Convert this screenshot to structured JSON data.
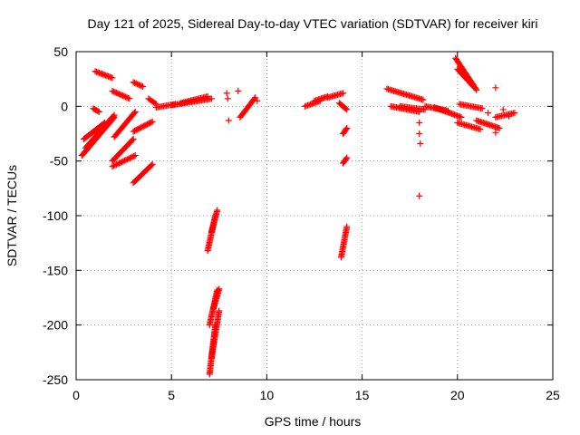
{
  "chart_data": {
    "type": "scatter",
    "title": "Day 121 of 2025, Sidereal Day-to-day VTEC variation (SDTVAR) for receiver kiri",
    "xlabel": "GPS time / hours",
    "ylabel": "SDTVAR / TECUs",
    "xlim": [
      0,
      25
    ],
    "ylim": [
      -250,
      50
    ],
    "xticks": [
      0,
      5,
      10,
      15,
      20,
      25
    ],
    "yticks": [
      -250,
      -200,
      -150,
      -100,
      -50,
      0,
      50
    ],
    "xtick_labels": [
      "0",
      "5",
      "10",
      "15",
      "20",
      "25"
    ],
    "ytick_labels": [
      "-250",
      "-200",
      "-150",
      "-100",
      "-50",
      "0",
      "50"
    ],
    "grid": true,
    "marker": "+",
    "color": "#ff0000",
    "tracks": [
      {
        "x": [
          0.3,
          2.0
        ],
        "y": [
          -45,
          -10
        ]
      },
      {
        "x": [
          0.5,
          2.0
        ],
        "y": [
          -38,
          -8
        ]
      },
      {
        "x": [
          0.4,
          1.5
        ],
        "y": [
          -30,
          -15
        ]
      },
      {
        "x": [
          0.9,
          1.2
        ],
        "y": [
          -2,
          -5
        ]
      },
      {
        "x": [
          1.0,
          1.9
        ],
        "y": [
          32,
          26
        ]
      },
      {
        "x": [
          1.9,
          2.8
        ],
        "y": [
          14,
          7
        ]
      },
      {
        "x": [
          2.0,
          3.1
        ],
        "y": [
          -28,
          -5
        ]
      },
      {
        "x": [
          1.9,
          3.1
        ],
        "y": [
          -55,
          -45
        ]
      },
      {
        "x": [
          1.9,
          3.0
        ],
        "y": [
          -50,
          -30
        ]
      },
      {
        "x": [
          3.0,
          3.5
        ],
        "y": [
          22,
          18
        ]
      },
      {
        "x": [
          3.0,
          4.0
        ],
        "y": [
          -23,
          -14
        ]
      },
      {
        "x": [
          3.0,
          4.0
        ],
        "y": [
          -70,
          -53
        ]
      },
      {
        "x": [
          3.8,
          4.2
        ],
        "y": [
          7,
          2
        ]
      },
      {
        "x": [
          4.2,
          5.2
        ],
        "y": [
          -1,
          2
        ]
      },
      {
        "x": [
          5.0,
          7.1
        ],
        "y": [
          1,
          7
        ]
      },
      {
        "x": [
          5.5,
          6.9
        ],
        "y": [
          3,
          9
        ]
      },
      {
        "x": [
          6.9,
          7.3
        ],
        "y": [
          -132,
          -100
        ]
      },
      {
        "x": [
          7.1,
          7.4
        ],
        "y": [
          -115,
          -95
        ]
      },
      {
        "x": [
          7.0,
          7.3
        ],
        "y": [
          -245,
          -200
        ]
      },
      {
        "x": [
          7.1,
          7.5
        ],
        "y": [
          -230,
          -187
        ]
      },
      {
        "x": [
          7.0,
          7.4
        ],
        "y": [
          -200,
          -168
        ]
      },
      {
        "x": [
          7.2,
          7.5
        ],
        "y": [
          -185,
          -167
        ]
      },
      {
        "x": [
          8.6,
          9.4
        ],
        "y": [
          -10,
          8
        ]
      },
      {
        "x": [
          12.0,
          12.8
        ],
        "y": [
          0,
          5
        ]
      },
      {
        "x": [
          12.5,
          13.2
        ],
        "y": [
          5,
          9
        ]
      },
      {
        "x": [
          13.2,
          14.0
        ],
        "y": [
          8,
          12
        ]
      },
      {
        "x": [
          13.8,
          14.2
        ],
        "y": [
          3,
          -3
        ]
      },
      {
        "x": [
          14.0,
          14.2
        ],
        "y": [
          -25,
          -20
        ]
      },
      {
        "x": [
          14.0,
          14.2
        ],
        "y": [
          -52,
          -47
        ]
      },
      {
        "x": [
          13.9,
          14.2
        ],
        "y": [
          -138,
          -110
        ]
      },
      {
        "x": [
          16.3,
          18.2
        ],
        "y": [
          16,
          6
        ]
      },
      {
        "x": [
          16.5,
          18.0
        ],
        "y": [
          0,
          -5
        ]
      },
      {
        "x": [
          17.0,
          18.3
        ],
        "y": [
          0,
          -3
        ]
      },
      {
        "x": [
          18.3,
          19.5
        ],
        "y": [
          0,
          -4
        ]
      },
      {
        "x": [
          18.8,
          20.2
        ],
        "y": [
          -1,
          -10
        ]
      },
      {
        "x": [
          19.9,
          21.0
        ],
        "y": [
          44,
          15
        ]
      },
      {
        "x": [
          20.0,
          20.9
        ],
        "y": [
          34,
          17
        ]
      },
      {
        "x": [
          20.0,
          21.2
        ],
        "y": [
          -15,
          -21
        ]
      },
      {
        "x": [
          21.0,
          22.2
        ],
        "y": [
          -13,
          -20
        ]
      },
      {
        "x": [
          22.0,
          23.0
        ],
        "y": [
          -10,
          -6
        ]
      },
      {
        "x": [
          20.1,
          21.3
        ],
        "y": [
          2,
          -2
        ]
      }
    ],
    "points": [
      {
        "x": 7.9,
        "y": 12
      },
      {
        "x": 7.95,
        "y": 7
      },
      {
        "x": 8.0,
        "y": -13
      },
      {
        "x": 8.5,
        "y": 14
      },
      {
        "x": 9.5,
        "y": 5
      },
      {
        "x": 18.0,
        "y": -15
      },
      {
        "x": 18.0,
        "y": -25
      },
      {
        "x": 18.05,
        "y": -34
      },
      {
        "x": 18.0,
        "y": -82
      },
      {
        "x": 22.0,
        "y": 17
      },
      {
        "x": 22.0,
        "y": -24
      },
      {
        "x": 21.6,
        "y": -6
      },
      {
        "x": 22.4,
        "y": -3
      },
      {
        "x": 22.7,
        "y": -9
      }
    ]
  }
}
